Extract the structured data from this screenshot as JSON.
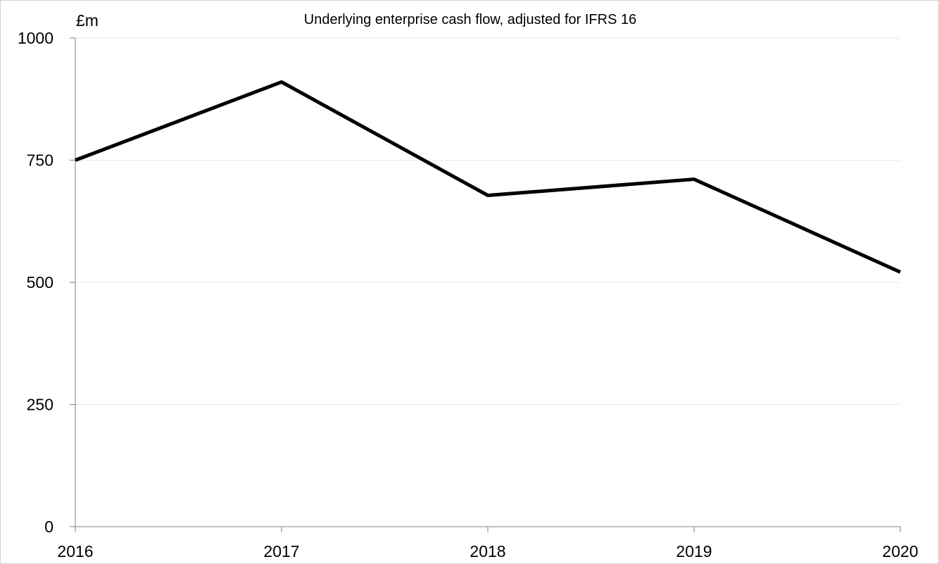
{
  "chart_data": {
    "type": "line",
    "title": "Underlying enterprise cash flow, adjusted for IFRS 16",
    "ylabel": "£m",
    "xlabel": "",
    "categories": [
      "2016",
      "2017",
      "2018",
      "2019",
      "2020"
    ],
    "series": [
      {
        "name": "Underlying enterprise cash flow",
        "values": [
          750,
          910,
          678,
          711,
          521
        ]
      }
    ],
    "ylim": [
      0,
      1000
    ],
    "yticks": [
      0,
      250,
      500,
      750,
      1000
    ],
    "grid": true,
    "legend": "none",
    "colors": {
      "line": "#000000",
      "grid": "#e8ecd8",
      "axis": "#808080"
    }
  }
}
